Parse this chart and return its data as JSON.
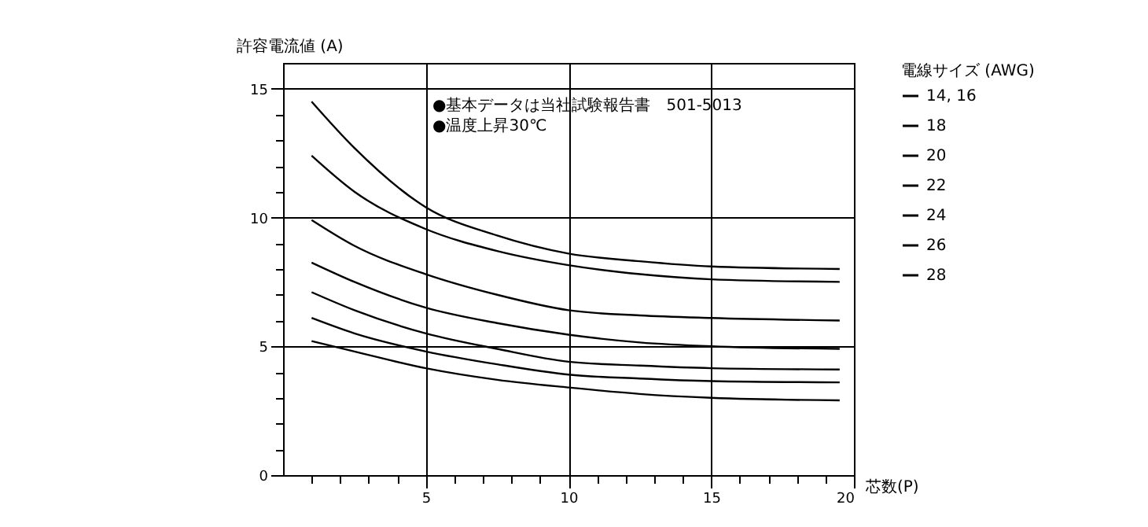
{
  "chart_data": {
    "type": "line",
    "xlabel": "芯数(P)",
    "ylabel": "許容電流値 (A)",
    "legend_title": "電線サイズ (AWG)",
    "annotations": [
      "●基本データは当社試験報告書　501-5013",
      "●温度上昇30℃"
    ],
    "x": [
      1,
      2.5,
      5,
      7.5,
      10,
      12.5,
      15,
      19.5
    ],
    "series": [
      {
        "name": "14, 16",
        "color": "#000000",
        "values": [
          14.5,
          12.7,
          10.4,
          9.3,
          8.6,
          8.3,
          8.1,
          8.0
        ]
      },
      {
        "name": "18",
        "color": "#000000",
        "values": [
          12.4,
          11.0,
          9.55,
          8.7,
          8.15,
          7.8,
          7.6,
          7.5
        ]
      },
      {
        "name": "20",
        "color": "#000000",
        "values": [
          9.9,
          8.9,
          7.8,
          7.0,
          6.4,
          6.2,
          6.1,
          6.0
        ]
      },
      {
        "name": "22",
        "color": "#000000",
        "values": [
          8.25,
          7.5,
          6.5,
          5.9,
          5.45,
          5.15,
          5.0,
          4.9
        ]
      },
      {
        "name": "24",
        "color": "#000000",
        "values": [
          7.1,
          6.4,
          5.5,
          4.9,
          4.4,
          4.25,
          4.15,
          4.1
        ]
      },
      {
        "name": "26",
        "color": "#000000",
        "values": [
          6.1,
          5.5,
          4.8,
          4.3,
          3.9,
          3.75,
          3.65,
          3.6
        ]
      },
      {
        "name": "28",
        "color": "#000000",
        "values": [
          5.2,
          4.8,
          4.15,
          3.7,
          3.4,
          3.15,
          3.0,
          2.9
        ]
      }
    ],
    "xlim": [
      0,
      20
    ],
    "ylim": [
      0,
      16
    ],
    "xticks": [
      {
        "value": 1,
        "label": null
      },
      {
        "value": 2,
        "label": null
      },
      {
        "value": 3,
        "label": null
      },
      {
        "value": 4,
        "label": null
      },
      5,
      {
        "value": 6,
        "label": null
      },
      {
        "value": 7,
        "label": null
      },
      {
        "value": 8,
        "label": null
      },
      {
        "value": 9,
        "label": null
      },
      10,
      {
        "value": 11,
        "label": null
      },
      {
        "value": 12,
        "label": null
      },
      {
        "value": 13,
        "label": null
      },
      {
        "value": 14,
        "label": null
      },
      15,
      {
        "value": 16,
        "label": null
      },
      {
        "value": 17,
        "label": null
      },
      {
        "value": 18,
        "label": null
      },
      {
        "value": 19,
        "label": null
      },
      20
    ],
    "yticks": [
      0,
      {
        "value": 1,
        "label": null
      },
      {
        "value": 2,
        "label": null
      },
      {
        "value": 3,
        "label": null
      },
      {
        "value": 4,
        "label": null
      },
      5,
      {
        "value": 6,
        "label": null
      },
      {
        "value": 7,
        "label": null
      },
      {
        "value": 8,
        "label": null
      },
      {
        "value": 9,
        "label": null
      },
      10,
      {
        "value": 11,
        "label": null
      },
      {
        "value": 12,
        "label": null
      },
      {
        "value": 13,
        "label": null
      },
      {
        "value": 14,
        "label": null
      },
      15
    ],
    "grid": true,
    "legend": "right",
    "marker": "none",
    "line_style": "solid"
  }
}
